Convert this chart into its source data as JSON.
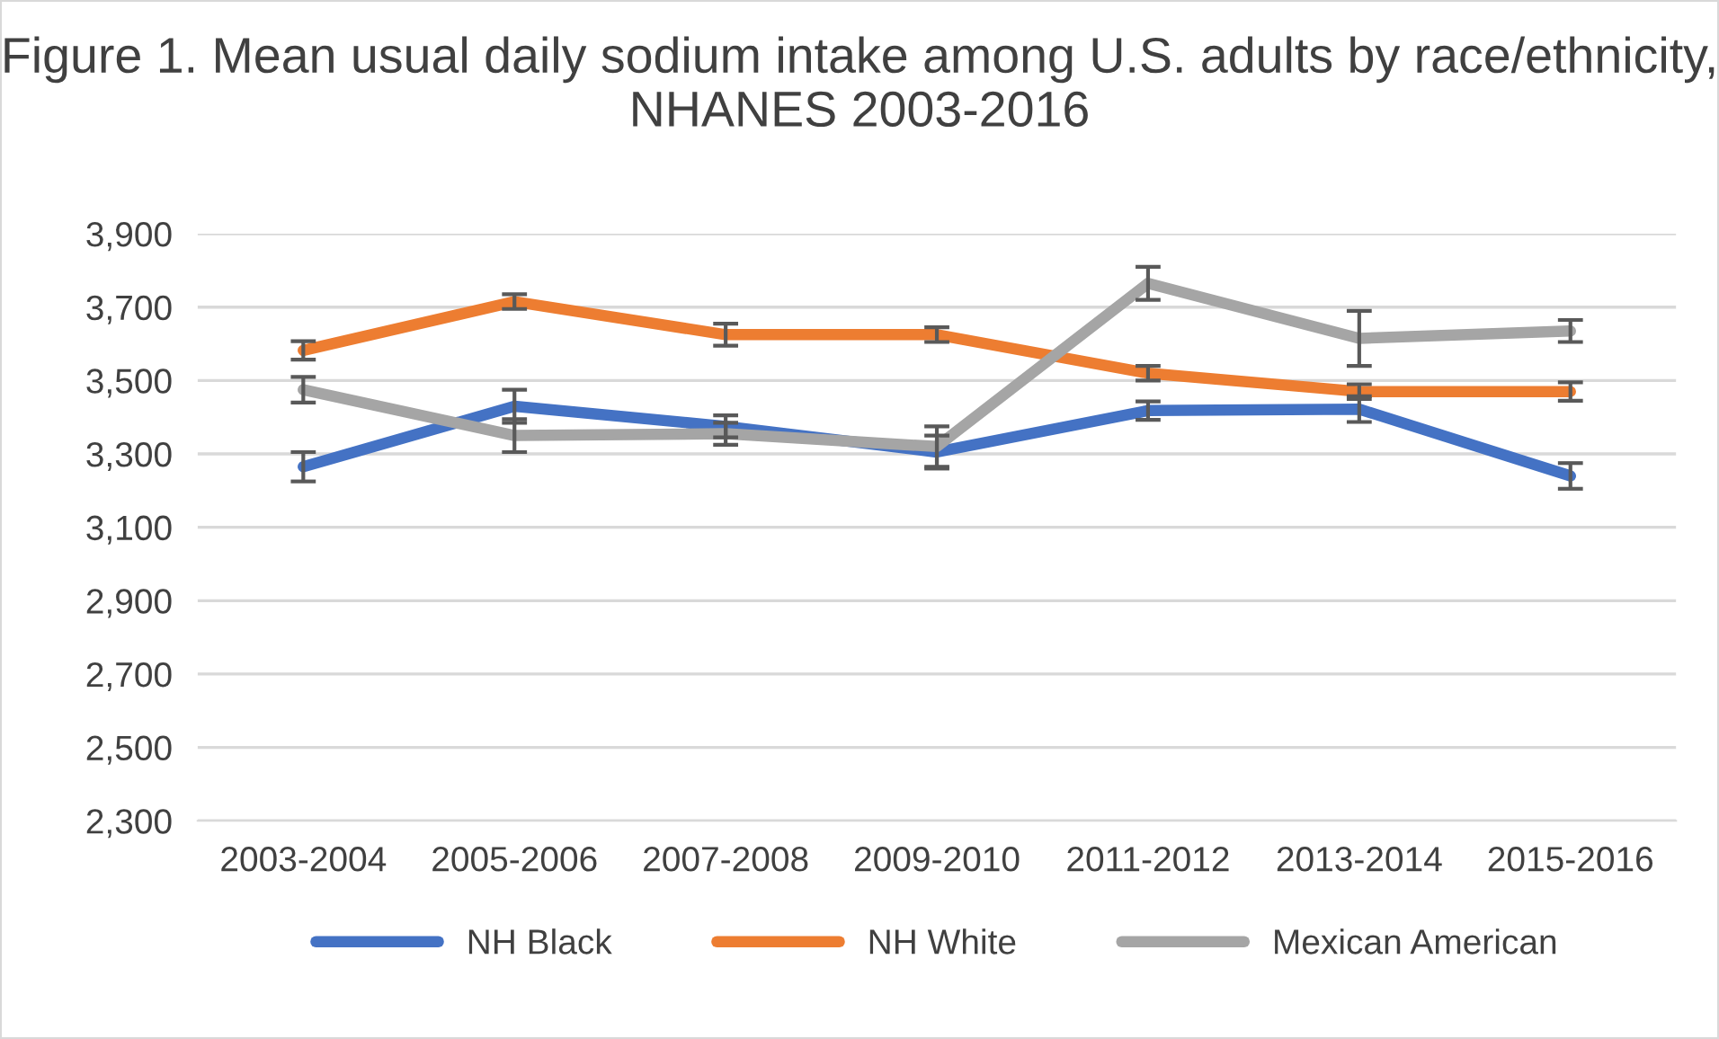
{
  "chart_data": {
    "type": "line",
    "title": "Figure 1. Mean usual daily sodium intake among U.S. adults by race/ethnicity, NHANES 2003-2016",
    "categories": [
      "2003-2004",
      "2005-2006",
      "2007-2008",
      "2009-2010",
      "2011-2012",
      "2013-2014",
      "2015-2016"
    ],
    "series": [
      {
        "name": "NH Black",
        "color": "#4472c4",
        "values": [
          3265,
          3430,
          3375,
          3305,
          3418,
          3422,
          3240
        ],
        "errors": [
          40,
          45,
          30,
          45,
          25,
          35,
          35
        ]
      },
      {
        "name": "NH White",
        "color": "#ed7d31",
        "values": [
          3582,
          3715,
          3625,
          3625,
          3520,
          3470,
          3470
        ],
        "errors": [
          25,
          20,
          30,
          20,
          20,
          20,
          25
        ]
      },
      {
        "name": "Mexican American",
        "color": "#a5a5a5",
        "values": [
          3475,
          3350,
          3355,
          3320,
          3765,
          3615,
          3635
        ],
        "errors": [
          35,
          45,
          30,
          55,
          45,
          75,
          30
        ]
      }
    ],
    "ylim": [
      2300,
      3900
    ],
    "yticks": [
      {
        "value": 2300,
        "label": "2,300"
      },
      {
        "value": 2500,
        "label": "2,500"
      },
      {
        "value": 2700,
        "label": "2,700"
      },
      {
        "value": 2900,
        "label": "2,900"
      },
      {
        "value": 3100,
        "label": "3,100"
      },
      {
        "value": 3300,
        "label": "3,300"
      },
      {
        "value": 3500,
        "label": "3,500"
      },
      {
        "value": 3700,
        "label": "3,700"
      },
      {
        "value": 3900,
        "label": "3,900"
      }
    ],
    "grid": "y",
    "legend": "bottom",
    "marker": "none",
    "line_style": "solid"
  }
}
